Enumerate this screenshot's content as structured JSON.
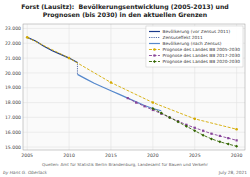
{
  "chart_data": {
    "type": "line",
    "title": "Forst (Lausitz):  Bevölkerungsentwicklung (2005-2013) und\nPrognosen (bis 2030) in den aktuellen Grenzen",
    "annotations": [
      "by Hans G. Oberlack",
      "Quellen: Amt für Statistik Berlin Brandenburg, Landesamt für Bauen und Verkehr",
      "July 28, 2021"
    ],
    "xlim": [
      2004.5,
      2031
    ],
    "ylim": [
      14800,
      23300
    ],
    "xticks": [
      2005,
      2010,
      2015,
      2020,
      2025,
      2030
    ],
    "yticks": [
      {
        "value": 15000,
        "label": "15.000"
      },
      {
        "value": 16000,
        "label": "16.000"
      },
      {
        "value": 17000,
        "label": "17.000"
      },
      {
        "value": 18000,
        "label": "18.000"
      },
      {
        "value": 19000,
        "label": "19.000"
      },
      {
        "value": 20000,
        "label": "20.000"
      },
      {
        "value": 21000,
        "label": "21.000"
      },
      {
        "value": 22000,
        "label": "22.000"
      },
      {
        "value": 23000,
        "label": "23.000"
      }
    ],
    "grid": true,
    "legend": "upper right",
    "series": [
      {
        "name": "Bevölkerung (vor Zensus 2011)",
        "color": "#1a3a8a",
        "line_style": "solid",
        "x": [
          2005,
          2006,
          2007,
          2008,
          2009,
          2010,
          2011
        ],
        "values": [
          22400,
          22150,
          21800,
          21500,
          21250,
          21000,
          20700
        ]
      },
      {
        "name": "Zensuseffekt 2011",
        "color": "#1a3a8a",
        "line_style": "dotted",
        "x": [
          2011,
          2011
        ],
        "values": [
          20700,
          19900
        ]
      },
      {
        "name": "Bevölkerung (nach Zensus)",
        "color": "#5588cc",
        "line_style": "solid",
        "x": [
          2011,
          2012,
          2013,
          2014,
          2015,
          2016,
          2017,
          2018,
          2019,
          2020,
          2021
        ],
        "values": [
          19900,
          19600,
          19300,
          19050,
          18800,
          18550,
          18300,
          18050,
          17800,
          17600,
          17450
        ]
      },
      {
        "name": "Prognose des Landes BB 2005-2030",
        "color": "#d4aa00",
        "line_style": "dashed",
        "marker": "circle",
        "x": [
          2005,
          2010,
          2015,
          2020,
          2025,
          2030
        ],
        "values": [
          22400,
          21000,
          19350,
          18000,
          16900,
          16200
        ]
      },
      {
        "name": "Prognose des Landes BB 2017-2030",
        "color": "#884499",
        "line_style": "dashed",
        "marker": "square",
        "x": [
          2017,
          2018,
          2019,
          2020,
          2021,
          2022,
          2023,
          2024,
          2025,
          2026,
          2027,
          2028,
          2029,
          2030
        ],
        "values": [
          18300,
          18000,
          17750,
          17500,
          17250,
          17000,
          16750,
          16500,
          16300,
          16100,
          15900,
          15750,
          15600,
          15450
        ]
      },
      {
        "name": "Prognose des Landes BB 2020-2030",
        "color": "#336600",
        "line_style": "dashed",
        "marker": "diamond",
        "x": [
          2020,
          2021,
          2022,
          2023,
          2024,
          2025,
          2026,
          2027,
          2028,
          2029,
          2030
        ],
        "values": [
          17600,
          17300,
          17000,
          16700,
          16400,
          16100,
          15800,
          15550,
          15350,
          15200,
          15050
        ]
      }
    ]
  }
}
